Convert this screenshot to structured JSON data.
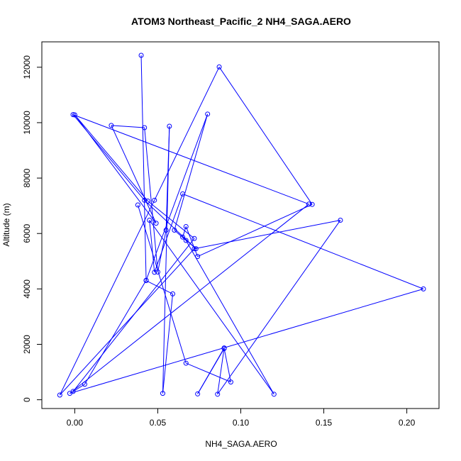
{
  "chart_data": {
    "type": "line",
    "title": "ATOM3 Northeast_Pacific_2 NH4_SAGA.AERO",
    "xlabel": "NH4_SAGA.AERO",
    "ylabel": "Altitude (m)",
    "xlim": [
      -0.01,
      0.21
    ],
    "ylim": [
      170,
      12430
    ],
    "x_ticks": [
      0.0,
      0.05,
      0.1,
      0.15,
      0.2
    ],
    "x_tick_labels": [
      "0.00",
      "0.05",
      "0.10",
      "0.15",
      "0.20"
    ],
    "y_ticks": [
      0,
      2000,
      4000,
      6000,
      8000,
      10000,
      12000
    ],
    "y_tick_labels": [
      "0",
      "2000",
      "4000",
      "6000",
      "8000",
      "10000",
      "12000"
    ],
    "grid": false,
    "line_color": "#0000ff",
    "marker": "open-circle",
    "series": [
      {
        "x": [
          0.04,
          0.043,
          0.059,
          0.053,
          0.057,
          0.055,
          0.05,
          0.042,
          0.022,
          0.049,
          0.0,
          0.044,
          0.072,
          -0.001,
          0.006,
          0.043,
          0.08,
          0.06,
          0.067,
          0.12,
          0.045,
          0.048,
          0.065,
          0.21,
          -0.003,
          0.141,
          -0.001,
          0.042,
          0.073,
          0.065,
          0.067,
          0.074,
          0.143,
          0.087,
          0.048,
          -0.009,
          0.072,
          0.16,
          0.086,
          0.09,
          0.074,
          0.09,
          0.094,
          0.067,
          0.038
        ],
        "y": [
          12430,
          4300,
          3820,
          230,
          9870,
          6120,
          4610,
          9820,
          9900,
          6370,
          10280,
          7170,
          5820,
          300,
          560,
          4310,
          10310,
          6120,
          5750,
          200,
          6480,
          4600,
          7430,
          4000,
          230,
          7060,
          10290,
          7200,
          5450,
          5870,
          6250,
          5170,
          7050,
          12010,
          7200,
          170,
          5450,
          6480,
          200,
          1870,
          210,
          1850,
          640,
          1320,
          7030
        ]
      }
    ]
  }
}
